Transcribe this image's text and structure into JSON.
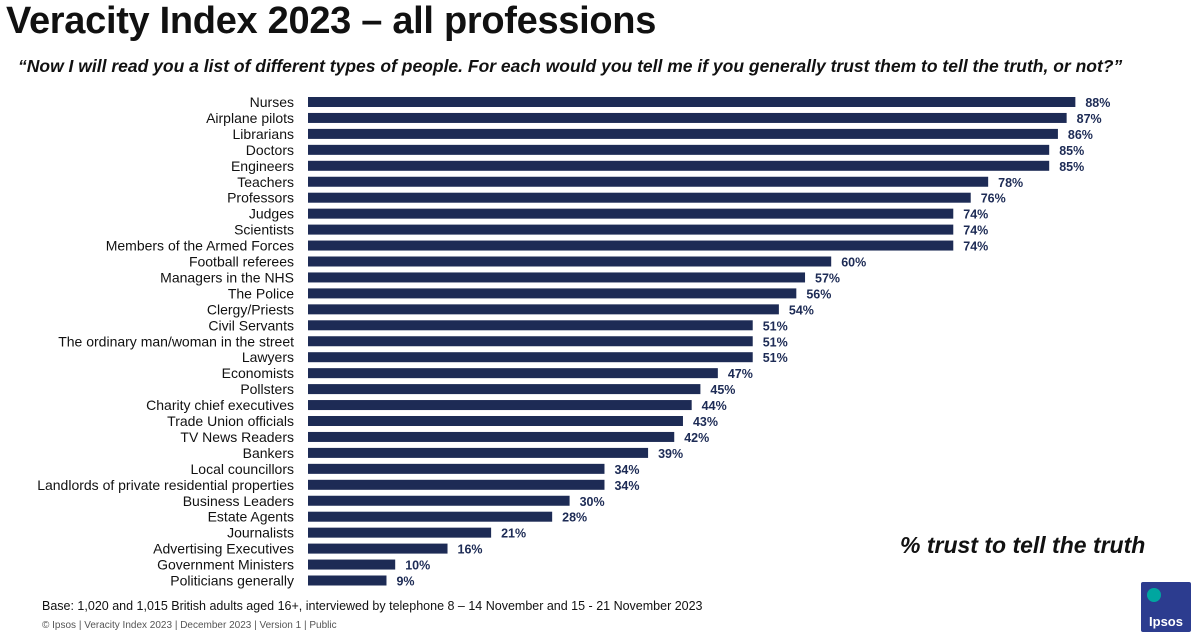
{
  "title": "Veracity Index 2023 – all professions",
  "question": "“Now I will read you a list of different types of people. For each would you tell me if you generally trust them to tell the truth, or not?”",
  "chart_data": {
    "type": "bar",
    "orientation": "horizontal",
    "title": "Veracity Index 2023 – all professions",
    "subtitle": "% trust to tell the truth",
    "xlim": [
      0,
      100
    ],
    "value_suffix": "%",
    "bar_color": "#1d2b55",
    "categories": [
      "Nurses",
      "Airplane pilots",
      "Librarians",
      "Doctors",
      "Engineers",
      "Teachers",
      "Professors",
      "Judges",
      "Scientists",
      "Members of the Armed Forces",
      "Football referees",
      "Managers in the NHS",
      "The Police",
      "Clergy/Priests",
      "Civil Servants",
      "The ordinary man/woman in the street",
      "Lawyers",
      "Economists",
      "Pollsters",
      "Charity chief executives",
      "Trade Union officials",
      "TV News Readers",
      "Bankers",
      "Local councillors",
      "Landlords of private residential properties",
      "Business Leaders",
      "Estate Agents",
      "Journalists",
      "Advertising Executives",
      "Government Ministers",
      "Politicians generally"
    ],
    "values": [
      88,
      87,
      86,
      85,
      85,
      78,
      76,
      74,
      74,
      74,
      60,
      57,
      56,
      54,
      51,
      51,
      51,
      47,
      45,
      44,
      43,
      42,
      39,
      34,
      34,
      30,
      28,
      21,
      16,
      10,
      9
    ]
  },
  "base_note": "Base: 1,020 and 1,015 British adults aged 16+, interviewed by telephone 8 – 14 November and 15 - 21 November 2023",
  "footer": "© Ipsos | Veracity Index 2023 | December 2023 | Version 1 | Public",
  "logo_text": "Ipsos",
  "colors": {
    "bar": "#1d2b55",
    "logo": "#2c3c8f"
  }
}
